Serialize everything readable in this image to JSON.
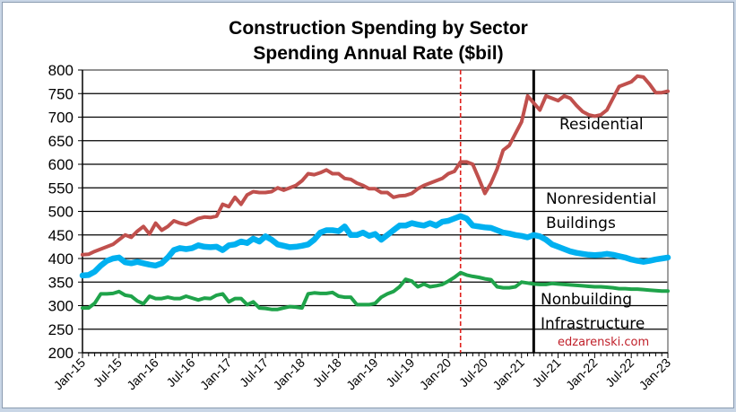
{
  "chart_data": {
    "type": "line",
    "title": "Construction Spending by Sector",
    "subtitle": "Spending Annual Rate ($bil)",
    "xlabel": "",
    "ylabel": "",
    "ylim": [
      200,
      800
    ],
    "yticks": [
      200,
      250,
      300,
      350,
      400,
      450,
      500,
      550,
      600,
      650,
      700,
      750,
      800
    ],
    "grid": true,
    "x_start": "Jan-15",
    "x_end": "Jan-23",
    "x_interval": "monthly",
    "xtick_labels": [
      "Jan-15",
      "Jul-15",
      "Jan-16",
      "Jul-16",
      "Jan-17",
      "Jul-17",
      "Jan-18",
      "Jul-18",
      "Jan-19",
      "Jul-19",
      "Jan-20",
      "Jul-20",
      "Jan-21",
      "Jul-21",
      "Jan-22",
      "Jul-22",
      "Jan-23"
    ],
    "vertical_markers": [
      {
        "name": "covid-marker",
        "at_month_index": 62,
        "label_month": "Mar-20",
        "style": "dashed",
        "color": "#e0201c"
      },
      {
        "name": "forecast-marker",
        "at_month_index": 74,
        "label_month": "Mar-21",
        "style": "solid",
        "color": "#000000"
      }
    ],
    "series": [
      {
        "name": "Residential",
        "color": "#c0504d",
        "values": [
          408,
          409,
          415,
          420,
          425,
          430,
          440,
          450,
          445,
          458,
          468,
          452,
          475,
          460,
          468,
          480,
          475,
          472,
          478,
          485,
          488,
          487,
          490,
          515,
          510,
          530,
          515,
          535,
          542,
          540,
          540,
          542,
          550,
          545,
          550,
          555,
          565,
          580,
          578,
          582,
          588,
          580,
          580,
          570,
          568,
          560,
          555,
          548,
          548,
          540,
          540,
          530,
          533,
          534,
          538,
          548,
          555,
          560,
          565,
          570,
          580,
          585,
          605,
          605,
          600,
          570,
          538,
          560,
          590,
          630,
          640,
          665,
          690,
          745,
          730,
          715,
          745,
          740,
          735,
          745,
          740,
          725,
          712,
          705,
          702,
          705,
          715,
          740,
          765,
          770,
          775,
          787,
          785,
          770,
          752,
          752,
          755
        ]
      },
      {
        "name": "Nonresidential Buildings",
        "color": "#00b0f0",
        "values": [
          364,
          365,
          372,
          385,
          395,
          400,
          402,
          392,
          390,
          393,
          390,
          387,
          385,
          390,
          402,
          418,
          422,
          420,
          422,
          428,
          425,
          424,
          425,
          418,
          428,
          430,
          436,
          433,
          442,
          436,
          447,
          440,
          430,
          427,
          424,
          425,
          427,
          430,
          440,
          455,
          460,
          460,
          458,
          468,
          450,
          450,
          455,
          448,
          452,
          440,
          450,
          460,
          470,
          470,
          475,
          472,
          470,
          475,
          470,
          478,
          480,
          485,
          490,
          485,
          470,
          468,
          466,
          465,
          460,
          455,
          453,
          450,
          448,
          445,
          450,
          447,
          440,
          430,
          425,
          420,
          415,
          412,
          410,
          408,
          407,
          408,
          410,
          408,
          405,
          402,
          398,
          395,
          393,
          395,
          398,
          400,
          402
        ]
      },
      {
        "name": "Nonbuilding Infrastructure",
        "color": "#1fa34a",
        "values": [
          295,
          295,
          305,
          325,
          325,
          326,
          330,
          322,
          320,
          310,
          304,
          320,
          315,
          315,
          318,
          315,
          315,
          320,
          316,
          312,
          316,
          315,
          322,
          325,
          308,
          315,
          315,
          302,
          308,
          295,
          294,
          292,
          292,
          295,
          298,
          297,
          295,
          325,
          327,
          326,
          326,
          328,
          320,
          318,
          318,
          302,
          302,
          302,
          305,
          318,
          325,
          330,
          340,
          356,
          352,
          340,
          346,
          340,
          342,
          345,
          352,
          360,
          370,
          365,
          362,
          360,
          357,
          355,
          340,
          338,
          338,
          340,
          350,
          348,
          346,
          345,
          345,
          347,
          346,
          345,
          344,
          343,
          342,
          341,
          340,
          340,
          339,
          338,
          336,
          336,
          335,
          335,
          334,
          333,
          332,
          331,
          331
        ]
      }
    ],
    "annotations": [
      {
        "name": "residential-label",
        "lines": [
          "Residential"
        ]
      },
      {
        "name": "nonresidential-label",
        "lines": [
          "Nonresidential",
          "Buildings"
        ]
      },
      {
        "name": "nonbuilding-label",
        "lines": [
          "Nonbuilding",
          "Infrastructure"
        ]
      }
    ],
    "credit": "edzarenski.com"
  }
}
